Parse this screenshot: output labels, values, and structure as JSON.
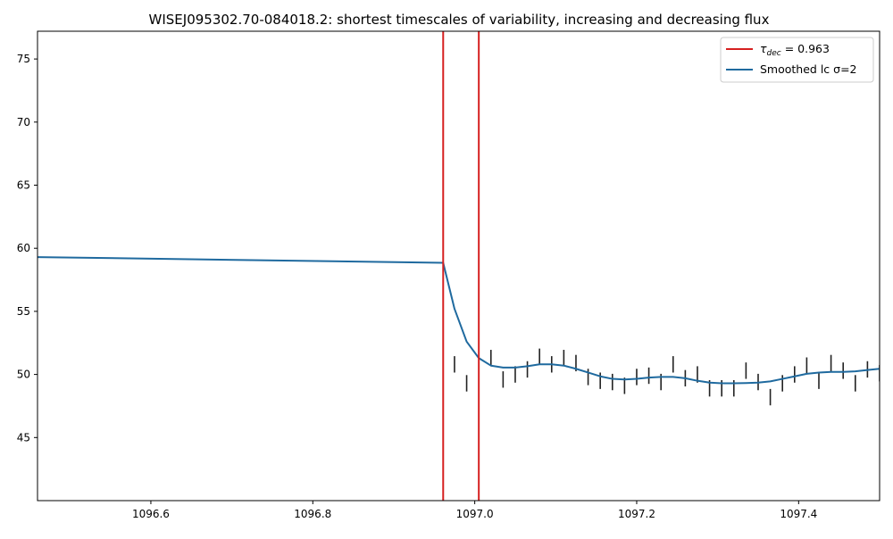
{
  "chart_data": {
    "type": "line",
    "title": "WISEJ095302.70-084018.2: shortest timescales of variability, increasing and decreasing flux",
    "xlabel": "",
    "ylabel": "",
    "xlim": [
      1096.46,
      1097.5
    ],
    "ylim": [
      40.0,
      77.2
    ],
    "x_ticks": [
      1096.6,
      1096.8,
      1097.0,
      1097.2,
      1097.4
    ],
    "x_tick_labels": [
      "1096.6",
      "1096.8",
      "1097.0",
      "1097.2",
      "1097.4"
    ],
    "y_ticks": [
      45,
      50,
      55,
      60,
      65,
      70,
      75
    ],
    "y_tick_labels": [
      "45",
      "50",
      "55",
      "60",
      "65",
      "70",
      "75"
    ],
    "grid": false,
    "legend_position": "top-right",
    "legend": [
      {
        "symbol": "τ",
        "subscript": "dec",
        "text": " = 0.963",
        "color": "#d62020"
      },
      {
        "symbol": "",
        "subscript": "",
        "text": "Smoothed lc σ=2",
        "color": "#1f6a9f"
      }
    ],
    "vertical_lines": {
      "name": "τdec = 0.963",
      "color": "#d62020",
      "x": [
        1096.961,
        1097.005
      ]
    },
    "smoothed_series": {
      "name": "Smoothed lc σ=2",
      "color": "#1f6a9f",
      "x": [
        1096.46,
        1096.961,
        1096.975,
        1096.99,
        1097.005,
        1097.02,
        1097.035,
        1097.05,
        1097.065,
        1097.08,
        1097.095,
        1097.11,
        1097.125,
        1097.14,
        1097.155,
        1097.17,
        1097.185,
        1097.2,
        1097.215,
        1097.23,
        1097.245,
        1097.26,
        1097.275,
        1097.29,
        1097.305,
        1097.32,
        1097.335,
        1097.35,
        1097.365,
        1097.38,
        1097.395,
        1097.41,
        1097.425,
        1097.44,
        1097.455,
        1097.47,
        1097.485,
        1097.5
      ],
      "y": [
        59.3,
        58.85,
        55.2,
        52.6,
        51.3,
        50.7,
        50.55,
        50.55,
        50.65,
        50.8,
        50.8,
        50.7,
        50.45,
        50.15,
        49.85,
        49.65,
        49.6,
        49.65,
        49.75,
        49.8,
        49.8,
        49.7,
        49.5,
        49.35,
        49.3,
        49.3,
        49.32,
        49.35,
        49.45,
        49.65,
        49.85,
        50.05,
        50.15,
        50.2,
        50.2,
        50.25,
        50.35,
        50.45
      ]
    },
    "error_bars": {
      "color": "#222222",
      "x": [
        1096.975,
        1096.99,
        1097.02,
        1097.035,
        1097.05,
        1097.065,
        1097.08,
        1097.095,
        1097.11,
        1097.125,
        1097.14,
        1097.155,
        1097.17,
        1097.185,
        1097.2,
        1097.215,
        1097.23,
        1097.245,
        1097.26,
        1097.275,
        1097.29,
        1097.305,
        1097.32,
        1097.335,
        1097.35,
        1097.365,
        1097.38,
        1097.395,
        1097.41,
        1097.425,
        1097.44,
        1097.455,
        1097.47,
        1097.485,
        1097.5
      ],
      "y": [
        50.8,
        49.3,
        51.3,
        49.6,
        50.0,
        50.4,
        51.4,
        50.8,
        51.3,
        50.9,
        49.8,
        49.5,
        49.4,
        49.1,
        49.8,
        49.9,
        49.4,
        50.8,
        49.7,
        50.0,
        48.9,
        48.9,
        48.9,
        50.3,
        49.4,
        48.2,
        49.3,
        50.0,
        50.7,
        49.5,
        50.9,
        50.3,
        49.3,
        50.4,
        50.1
      ],
      "err": [
        0.65,
        0.65,
        0.65,
        0.65,
        0.65,
        0.65,
        0.65,
        0.65,
        0.65,
        0.65,
        0.65,
        0.65,
        0.65,
        0.65,
        0.65,
        0.65,
        0.65,
        0.65,
        0.65,
        0.65,
        0.65,
        0.65,
        0.65,
        0.65,
        0.65,
        0.65,
        0.65,
        0.65,
        0.65,
        0.65,
        0.65,
        0.65,
        0.65,
        0.65,
        0.65
      ]
    }
  }
}
